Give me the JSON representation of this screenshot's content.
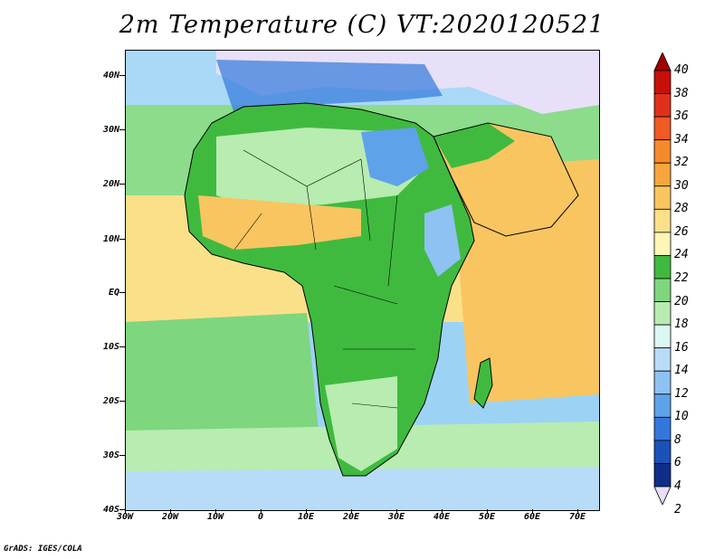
{
  "title": "2m Temperature (C) VT:2020120521",
  "footer": "GrADS: IGES/COLA",
  "lat_labels": [
    "40N",
    "30N",
    "20N",
    "10N",
    "EQ",
    "10S",
    "20S",
    "30S",
    "40S"
  ],
  "lon_labels": [
    "30W",
    "20W",
    "10W",
    "0",
    "10E",
    "20E",
    "30E",
    "40E",
    "50E",
    "60E",
    "70E"
  ],
  "colorbar": {
    "labels": [
      "40",
      "38",
      "36",
      "34",
      "32",
      "30",
      "28",
      "26",
      "24",
      "22",
      "20",
      "18",
      "16",
      "14",
      "12",
      "10",
      "8",
      "6",
      "4",
      "2"
    ],
    "colors": [
      "#a00000",
      "#c8100a",
      "#e0301a",
      "#f05a23",
      "#f58a2a",
      "#f6a63c",
      "#f8c560",
      "#fbe08a",
      "#fff5b5",
      "#3fba3f",
      "#7ed67e",
      "#b8ecb0",
      "#ddf7f2",
      "#b8dcf7",
      "#8ec2f2",
      "#5ea2ea",
      "#3278dc",
      "#1a52b8",
      "#0e2e8a",
      "#e8e0f8"
    ]
  },
  "colors": {
    "ocean_north": "#a9d9f7",
    "ocean_tropic_warm": "#fbe08a",
    "ocean_equator_hot": "#f8c560",
    "ocean_south_cool": "#7ed67e",
    "ocean_far_south": "#b8dcf7",
    "land_green": "#3fba3f",
    "land_light": "#b8ecb0",
    "land_cold": "#3278dc",
    "europe_cold": "#e8e0f8"
  }
}
